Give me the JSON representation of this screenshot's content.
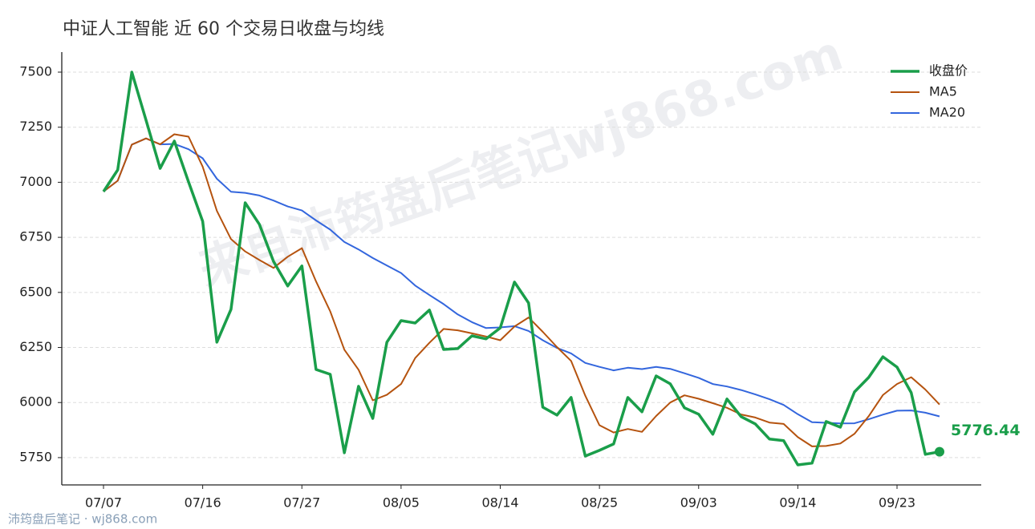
{
  "chart_data": {
    "type": "line",
    "title": "中证人工智能 近 60 个交易日收盘与均线",
    "watermark": "来自沛筠盘后笔记wj868.com",
    "footer": "沛筠盘后笔记 · wj868.com",
    "categories": [
      "07/07",
      null,
      null,
      null,
      null,
      null,
      null,
      "07/16",
      null,
      null,
      null,
      null,
      null,
      null,
      "07/27",
      null,
      null,
      null,
      null,
      null,
      null,
      "08/05",
      null,
      null,
      null,
      null,
      null,
      null,
      "08/14",
      null,
      null,
      null,
      null,
      null,
      null,
      "08/25",
      null,
      null,
      null,
      null,
      null,
      null,
      "09/03",
      null,
      null,
      null,
      null,
      null,
      null,
      "09/14",
      null,
      null,
      null,
      null,
      null,
      null,
      "09/23",
      null,
      null,
      null
    ],
    "series": [
      {
        "name": "收盘价",
        "color": "#1a9e4a",
        "values": [
          6958,
          7056,
          7500,
          7282,
          7063,
          7187,
          7002,
          6823,
          6274,
          6423,
          6907,
          6809,
          6641,
          6529,
          6620,
          6150,
          6128,
          5772,
          6074,
          5928,
          6274,
          6372,
          6361,
          6420,
          6241,
          6245,
          6303,
          6289,
          6339,
          6547,
          6452,
          5979,
          5943,
          6023,
          5757,
          5783,
          5812,
          6023,
          5958,
          6121,
          6085,
          5976,
          5947,
          5856,
          6016,
          5936,
          5903,
          5834,
          5827,
          5717,
          5725,
          5914,
          5888,
          6048,
          6114,
          6208,
          6161,
          6045,
          5765,
          5776.44
        ]
      },
      {
        "name": "MA5",
        "color": "#b5530f",
        "values": [
          6958,
          7007,
          7171,
          7199,
          7172,
          7218,
          7207,
          7071,
          6870,
          6742,
          6686,
          6647,
          6611,
          6662,
          6701,
          6550,
          6414,
          6240,
          6149,
          6010,
          6035,
          6084,
          6202,
          6271,
          6334,
          6328,
          6314,
          6300,
          6283,
          6345,
          6386,
          6321,
          6252,
          6189,
          6031,
          5897,
          5864,
          5880,
          5867,
          5939,
          6000,
          6033,
          6017,
          5997,
          5976,
          5946,
          5932,
          5909,
          5903,
          5843,
          5801,
          5803,
          5814,
          5858,
          5938,
          6034,
          6084,
          6115,
          6059,
          5991
        ]
      },
      {
        "name": "MA20",
        "color": "#3366dd",
        "values": [
          6958,
          7007,
          7171,
          7199,
          7172,
          7174,
          7150,
          7109,
          7016,
          6957,
          6952,
          6940,
          6917,
          6890,
          6872,
          6827,
          6785,
          6729,
          6695,
          6656,
          6622,
          6588,
          6531,
          6488,
          6447,
          6400,
          6365,
          6338,
          6341,
          6347,
          6325,
          6283,
          6248,
          6223,
          6180,
          6162,
          6146,
          6158,
          6152,
          6162,
          6153,
          6133,
          6112,
          6084,
          6073,
          6057,
          6037,
          6015,
          5989,
          5947,
          5911,
          5908,
          5905,
          5906,
          5924,
          5945,
          5963,
          5964,
          5954,
          5937
        ]
      }
    ],
    "ylim": [
      5626,
      7591
    ],
    "yticks": [
      5750,
      6000,
      6250,
      6500,
      6750,
      7000,
      7250,
      7500
    ],
    "grid": true,
    "legend": "upper-right",
    "last_point_label": true
  }
}
